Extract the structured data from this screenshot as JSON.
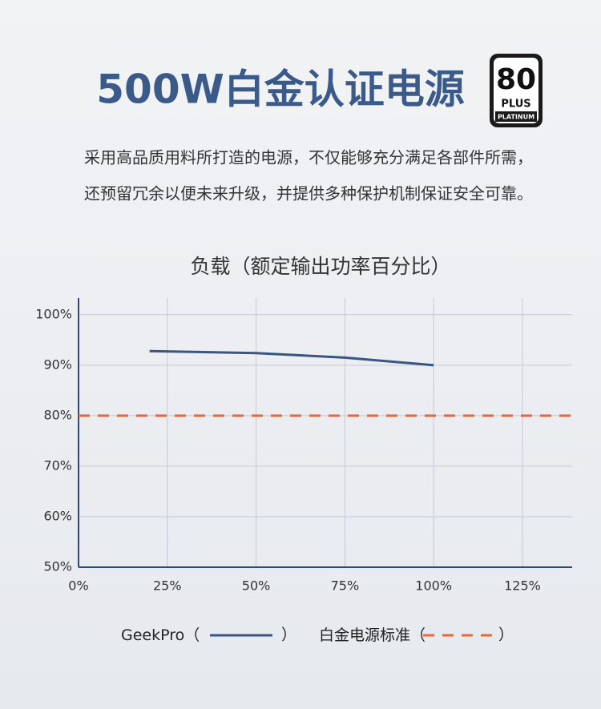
{
  "header": {
    "title": "500W白金认证电源",
    "badge": {
      "number": "80",
      "plus": "PLUS",
      "grade": "PLATINUM"
    },
    "description": [
      "采用高品质用料所打造的电源，不仅能够充分满足各部件所需，",
      "还预留冗余以便未来升级，并提供多种保护机制保证安全可靠。"
    ]
  },
  "chart_data": {
    "type": "line",
    "title": "负载（额定输出功率百分比）",
    "xlim": [
      0,
      139
    ],
    "xticks": [
      {
        "value": 0,
        "label": "0%"
      },
      {
        "value": 25,
        "label": "25%"
      },
      {
        "value": 50,
        "label": "50%"
      },
      {
        "value": 75,
        "label": "75%"
      },
      {
        "value": 100,
        "label": "100%"
      },
      {
        "value": 125,
        "label": "125%"
      }
    ],
    "ylim": [
      50,
      103.3
    ],
    "yticks": [
      {
        "value": 50,
        "label": "50%"
      },
      {
        "value": 60,
        "label": "60%"
      },
      {
        "value": 70,
        "label": "70%"
      },
      {
        "value": 80,
        "label": "80%"
      },
      {
        "value": 90,
        "label": "90%"
      },
      {
        "value": 100,
        "label": "100%"
      }
    ],
    "grid": true,
    "legend_open": "（",
    "legend_close": "）",
    "series": [
      {
        "name": "GeekPro",
        "color": "#3b5583",
        "style": "solid",
        "x": [
          20,
          50,
          75,
          100
        ],
        "values": [
          92.8,
          92.4,
          91.5,
          90.0
        ]
      },
      {
        "name": "白金电源标准",
        "color": "#e8683a",
        "style": "dashed",
        "x": [
          0,
          139
        ],
        "values": [
          80,
          80
        ]
      }
    ]
  }
}
